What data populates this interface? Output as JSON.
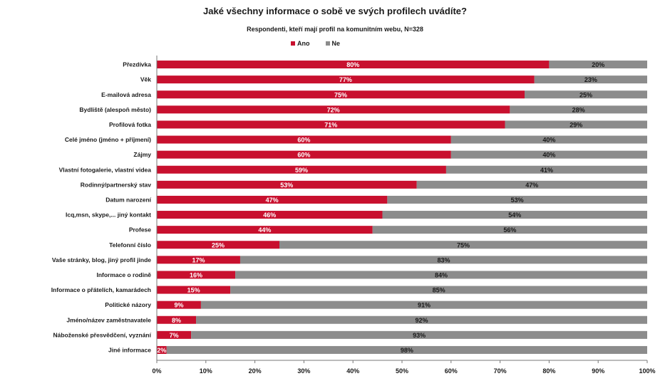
{
  "chart_data": {
    "type": "bar",
    "orientation": "horizontal",
    "stacked": "100%",
    "title": "Jaké všechny informace o sobě ve svých profilech uvádíte?",
    "subtitle": "Respondenti, kteří mají profil na komunitním webu, N=328",
    "legend_position": "top",
    "series": [
      {
        "name": "Ano",
        "color": "#c8102e"
      },
      {
        "name": "Ne",
        "color": "#8c8c8c"
      }
    ],
    "categories": [
      "Přezdívka",
      "Věk",
      "E-mailová adresa",
      "Bydliště (alespoň město)",
      "Profilová fotka",
      "Celé jméno (jméno + příjmení)",
      "Zájmy",
      "Vlastní fotogalerie, vlastní videa",
      "Rodinný/partnerský stav",
      "Datum narození",
      "Icq,msn, skype,... jiný kontakt",
      "Profese",
      "Telefonní číslo",
      "Vaše stránky, blog, jiný profil jinde",
      "Informace o rodině",
      "Informace o přátelích, kamarádech",
      "Politické názory",
      "Jméno/název zaměstnavatele",
      "Náboženské přesvědčení, vyznání",
      "Jiné informace"
    ],
    "values_ano": [
      80,
      77,
      75,
      72,
      71,
      60,
      60,
      59,
      53,
      47,
      46,
      44,
      25,
      17,
      16,
      15,
      9,
      8,
      7,
      2
    ],
    "values_ne": [
      20,
      23,
      25,
      28,
      29,
      40,
      40,
      41,
      47,
      53,
      54,
      56,
      75,
      83,
      84,
      85,
      91,
      92,
      93,
      98
    ],
    "labels_ano": [
      "80%",
      "77%",
      "75%",
      "72%",
      "71%",
      "60%",
      "60%",
      "59%",
      "53%",
      "47%",
      "46%",
      "44%",
      "25%",
      "17%",
      "16%",
      "15%",
      "9%",
      "8%",
      "7%",
      "2%"
    ],
    "labels_ne": [
      "20%",
      "23%",
      "25%",
      "28%",
      "29%",
      "40%",
      "40%",
      "41%",
      "47%",
      "53%",
      "54%",
      "56%",
      "75%",
      "83%",
      "84%",
      "85%",
      "91%",
      "92%",
      "93%",
      "98%"
    ],
    "xticks": [
      "0%",
      "10%",
      "20%",
      "30%",
      "40%",
      "50%",
      "60%",
      "70%",
      "80%",
      "90%",
      "100%"
    ],
    "xlim": [
      0,
      100
    ],
    "grid": false
  }
}
